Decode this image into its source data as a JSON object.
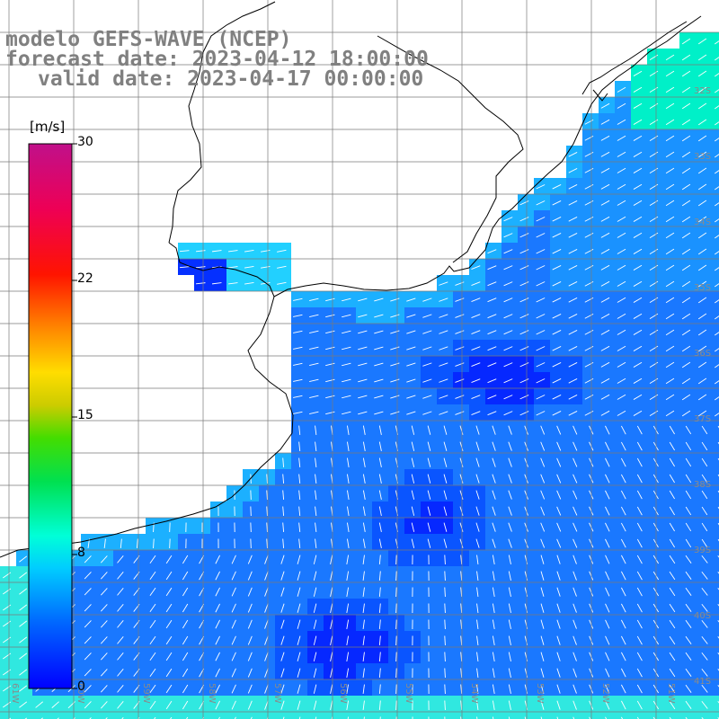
{
  "title": {
    "line1": "modelo GEFS-WAVE (NCEP)",
    "line2": "forecast date: 2023-04-12 18:00:00",
    "line3": "valid date: 2023-04-17 00:00:00"
  },
  "colorbar": {
    "unit": "[m/s]",
    "ticks": [
      "30",
      "22",
      "15",
      "8",
      "0"
    ],
    "range": [
      0,
      30
    ]
  },
  "lat_labels": [
    "32S",
    "33S",
    "34S",
    "35S",
    "36S",
    "37S",
    "38S",
    "39S",
    "40S",
    "41S"
  ],
  "lon_labels": [
    "61W",
    "60W",
    "59W",
    "58W",
    "57W",
    "56W",
    "55W",
    "54W",
    "53W",
    "52W",
    "51W"
  ],
  "colors": {
    "land": "#ffffff",
    "coast": "#000000",
    "grid": "#7a7a7a",
    "arrow": "#ffffff",
    "low_wind": "#0a2cff",
    "mid_wind": "#1f8cff",
    "coastal_wind": "#00d6f8"
  }
}
